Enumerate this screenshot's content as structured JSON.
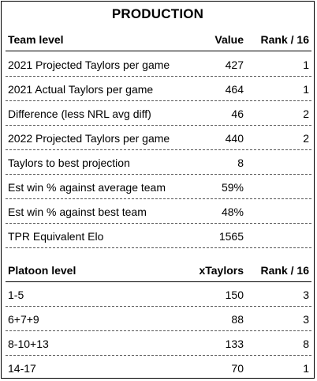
{
  "title": "PRODUCTION",
  "team": {
    "header": {
      "label": "Team level",
      "value": "Value",
      "rank": "Rank / 16"
    },
    "rows": [
      {
        "label": "2021 Projected Taylors per game",
        "value": "427",
        "rank": "1"
      },
      {
        "label": "2021 Actual Taylors per game",
        "value": "464",
        "rank": "1"
      },
      {
        "label": "Difference (less NRL avg diff)",
        "value": "46",
        "rank": "2"
      },
      {
        "label": "2022 Projected Taylors per game",
        "value": "440",
        "rank": "2"
      },
      {
        "label": "Taylors to best projection",
        "value": "8",
        "rank": ""
      },
      {
        "label": "Est win % against average team",
        "value": "59%",
        "rank": ""
      },
      {
        "label": "Est win % against best team",
        "value": "48%",
        "rank": ""
      },
      {
        "label": "TPR Equivalent Elo",
        "value": "1565",
        "rank": ""
      }
    ]
  },
  "platoon": {
    "header": {
      "label": "Platoon level",
      "value": "xTaylors",
      "rank": "Rank / 16"
    },
    "rows": [
      {
        "label": "1-5",
        "value": "150",
        "rank": "3"
      },
      {
        "label": "6+7+9",
        "value": "88",
        "rank": "3"
      },
      {
        "label": "8-10+13",
        "value": "133",
        "rank": "8"
      },
      {
        "label": "14-17",
        "value": "70",
        "rank": "1"
      }
    ]
  }
}
